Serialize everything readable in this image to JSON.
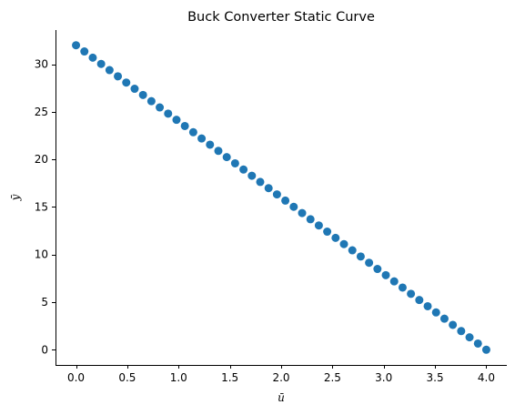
{
  "chart_data": {
    "type": "scatter",
    "title": "Buck Converter Static Curve",
    "xlabel": "ū",
    "ylabel": "ȳ",
    "xlim": [
      -0.2,
      4.2
    ],
    "ylim": [
      -1.6,
      33.6
    ],
    "xticks": [
      0.0,
      0.5,
      1.0,
      1.5,
      2.0,
      2.5,
      3.0,
      3.5,
      4.0
    ],
    "xtick_labels": [
      "0.0",
      "0.5",
      "1.0",
      "1.5",
      "2.0",
      "2.5",
      "3.0",
      "3.5",
      "4.0"
    ],
    "yticks": [
      0,
      5,
      10,
      15,
      20,
      25,
      30
    ],
    "ytick_labels": [
      "0",
      "5",
      "10",
      "15",
      "20",
      "25",
      "30"
    ],
    "grid": false,
    "marker_color": "#1f77b4",
    "series": [
      {
        "x": [
          0.0,
          0.0816,
          0.1633,
          0.2449,
          0.3265,
          0.4082,
          0.4898,
          0.5714,
          0.6531,
          0.7347,
          0.8163,
          0.898,
          0.9796,
          1.0612,
          1.1429,
          1.2245,
          1.3061,
          1.3878,
          1.4694,
          1.551,
          1.6327,
          1.7143,
          1.7959,
          1.8776,
          1.9592,
          2.0408,
          2.1224,
          2.2041,
          2.2857,
          2.3673,
          2.449,
          2.5306,
          2.6122,
          2.6939,
          2.7755,
          2.8571,
          2.9388,
          3.0204,
          3.102,
          3.1837,
          3.2653,
          3.3469,
          3.4286,
          3.5102,
          3.5918,
          3.6735,
          3.7551,
          3.8367,
          3.9184,
          4.0
        ],
        "y": [
          32.0,
          31.347,
          30.694,
          30.041,
          29.388,
          28.735,
          28.082,
          27.429,
          26.776,
          26.122,
          25.469,
          24.816,
          24.163,
          23.51,
          22.857,
          22.204,
          21.551,
          20.898,
          20.245,
          19.592,
          18.939,
          18.286,
          17.633,
          16.98,
          16.327,
          15.673,
          15.02,
          14.367,
          13.714,
          13.061,
          12.408,
          11.755,
          11.102,
          10.449,
          9.796,
          9.143,
          8.49,
          7.837,
          7.184,
          6.531,
          5.878,
          5.224,
          4.571,
          3.918,
          3.265,
          2.612,
          1.959,
          1.306,
          0.653,
          0.0
        ]
      }
    ]
  }
}
